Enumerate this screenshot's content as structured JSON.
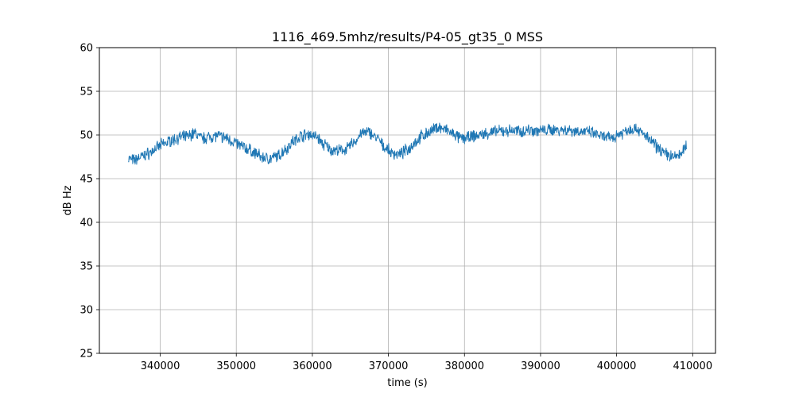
{
  "chart_data": {
    "type": "line",
    "title": "1116_469.5mhz/results/P4-05_gt35_0 MSS",
    "xlabel": "time (s)",
    "ylabel": "dB Hz",
    "xlim": [
      332000,
      413000
    ],
    "ylim": [
      25,
      60
    ],
    "xticks": [
      340000,
      350000,
      360000,
      370000,
      380000,
      390000,
      400000,
      410000
    ],
    "xtick_labels": [
      "340000",
      "350000",
      "360000",
      "370000",
      "380000",
      "390000",
      "400000",
      "410000"
    ],
    "yticks": [
      25,
      30,
      35,
      40,
      45,
      50,
      55,
      60
    ],
    "ytick_labels": [
      "25",
      "30",
      "35",
      "40",
      "45",
      "50",
      "55",
      "60"
    ],
    "grid": true,
    "series": [
      {
        "color": "#1f77b4",
        "x": [
          335800,
          336500,
          337500,
          338500,
          339500,
          340500,
          341500,
          342500,
          343500,
          344500,
          345500,
          346500,
          347500,
          348500,
          349500,
          350500,
          351500,
          352500,
          353500,
          354500,
          355500,
          356500,
          357500,
          358500,
          359500,
          360500,
          361500,
          362500,
          363500,
          364500,
          365500,
          366500,
          367500,
          368500,
          369500,
          370500,
          371500,
          372500,
          373500,
          374500,
          375500,
          376500,
          377500,
          378500,
          379500,
          380500,
          381500,
          382500,
          383500,
          384500,
          385500,
          386500,
          387500,
          388500,
          389500,
          390500,
          391500,
          392500,
          393500,
          394500,
          395500,
          396500,
          397500,
          398500,
          399500,
          400500,
          401500,
          402500,
          403500,
          404500,
          405500,
          406500,
          407500,
          408500,
          409200
        ],
        "y": [
          47.3,
          47.1,
          47.5,
          47.9,
          48.5,
          49.0,
          49.4,
          49.7,
          49.8,
          50.2,
          49.6,
          49.8,
          49.9,
          49.7,
          49.3,
          48.8,
          48.4,
          47.9,
          47.4,
          47.3,
          47.6,
          48.4,
          49.3,
          49.9,
          50.1,
          49.8,
          48.9,
          48.3,
          48.2,
          48.4,
          49.2,
          50.2,
          50.3,
          49.6,
          48.6,
          47.9,
          47.8,
          48.3,
          49.2,
          49.9,
          50.4,
          50.9,
          50.6,
          50.1,
          49.6,
          49.7,
          49.9,
          50.1,
          50.3,
          50.4,
          50.5,
          50.5,
          50.4,
          50.6,
          50.5,
          50.5,
          50.6,
          50.6,
          50.6,
          50.5,
          50.4,
          50.3,
          50.0,
          49.7,
          49.7,
          50.2,
          50.6,
          50.8,
          50.1,
          49.3,
          48.5,
          47.8,
          47.5,
          47.8,
          48.9
        ]
      }
    ]
  }
}
